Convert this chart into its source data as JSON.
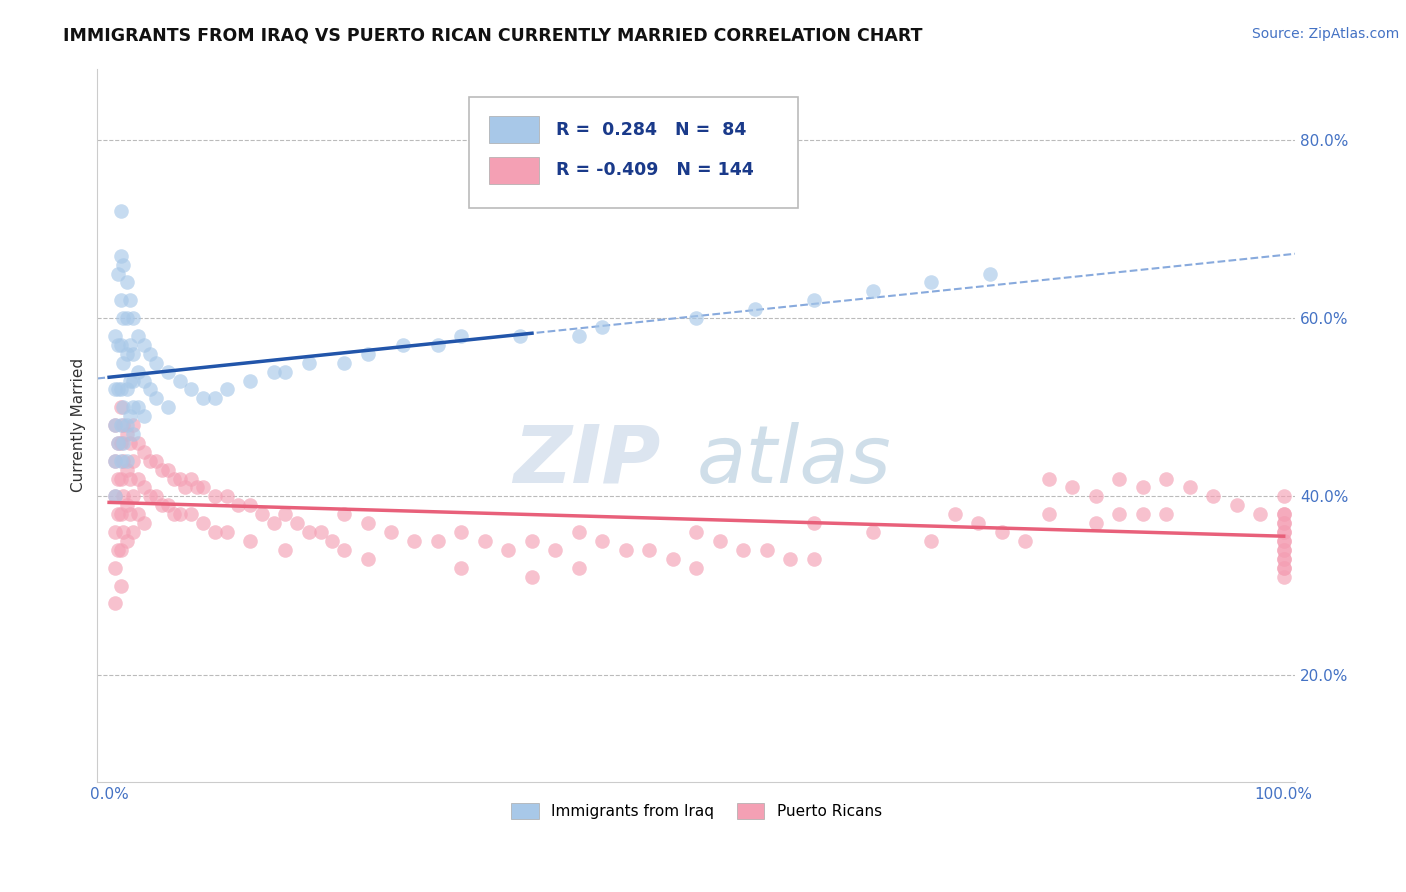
{
  "title": "IMMIGRANTS FROM IRAQ VS PUERTO RICAN CURRENTLY MARRIED CORRELATION CHART",
  "source_text": "Source: ZipAtlas.com",
  "ylabel": "Currently Married",
  "xlim": [
    -0.01,
    1.01
  ],
  "ylim": [
    0.08,
    0.88
  ],
  "yticks": [
    0.2,
    0.4,
    0.6,
    0.8
  ],
  "ytick_labels": [
    "20.0%",
    "40.0%",
    "60.0%",
    "80.0%"
  ],
  "xticks": [
    0.0,
    1.0
  ],
  "xtick_labels": [
    "0.0%",
    "100.0%"
  ],
  "legend_R_blue": "0.284",
  "legend_N_blue": "84",
  "legend_R_pink": "-0.409",
  "legend_N_pink": "144",
  "blue_color": "#A8C8E8",
  "pink_color": "#F4A0B4",
  "blue_line_color": "#2255AA",
  "pink_line_color": "#E8607A",
  "dashed_line_color": "#88AADD",
  "watermark_ZI": "ZIP",
  "watermark_atlas": "atlas",
  "watermark_color_zi": "#C0D0E4",
  "watermark_color_atlas": "#A8C4D8",
  "title_fontsize": 12.5,
  "label_fontsize": 11,
  "tick_fontsize": 11,
  "source_fontsize": 10,
  "blue_scatter_x": [
    0.005,
    0.005,
    0.005,
    0.005,
    0.005,
    0.008,
    0.008,
    0.008,
    0.008,
    0.01,
    0.01,
    0.01,
    0.01,
    0.01,
    0.01,
    0.01,
    0.012,
    0.012,
    0.012,
    0.012,
    0.012,
    0.015,
    0.015,
    0.015,
    0.015,
    0.015,
    0.015,
    0.018,
    0.018,
    0.018,
    0.018,
    0.02,
    0.02,
    0.02,
    0.02,
    0.02,
    0.025,
    0.025,
    0.025,
    0.03,
    0.03,
    0.03,
    0.035,
    0.035,
    0.04,
    0.04,
    0.05,
    0.05,
    0.06,
    0.07,
    0.08,
    0.09,
    0.1,
    0.12,
    0.14,
    0.15,
    0.17,
    0.2,
    0.22,
    0.25,
    0.28,
    0.3,
    0.35,
    0.4,
    0.42,
    0.5,
    0.55,
    0.6,
    0.65,
    0.7,
    0.75
  ],
  "blue_scatter_y": [
    0.58,
    0.52,
    0.48,
    0.44,
    0.4,
    0.65,
    0.57,
    0.52,
    0.46,
    0.72,
    0.67,
    0.62,
    0.57,
    0.52,
    0.48,
    0.44,
    0.66,
    0.6,
    0.55,
    0.5,
    0.46,
    0.64,
    0.6,
    0.56,
    0.52,
    0.48,
    0.44,
    0.62,
    0.57,
    0.53,
    0.49,
    0.6,
    0.56,
    0.53,
    0.5,
    0.47,
    0.58,
    0.54,
    0.5,
    0.57,
    0.53,
    0.49,
    0.56,
    0.52,
    0.55,
    0.51,
    0.54,
    0.5,
    0.53,
    0.52,
    0.51,
    0.51,
    0.52,
    0.53,
    0.54,
    0.54,
    0.55,
    0.55,
    0.56,
    0.57,
    0.57,
    0.58,
    0.58,
    0.58,
    0.59,
    0.6,
    0.61,
    0.62,
    0.63,
    0.64,
    0.65
  ],
  "pink_scatter_x": [
    0.005,
    0.005,
    0.005,
    0.005,
    0.005,
    0.005,
    0.008,
    0.008,
    0.008,
    0.008,
    0.01,
    0.01,
    0.01,
    0.01,
    0.01,
    0.01,
    0.012,
    0.012,
    0.012,
    0.012,
    0.015,
    0.015,
    0.015,
    0.015,
    0.018,
    0.018,
    0.018,
    0.02,
    0.02,
    0.02,
    0.02,
    0.025,
    0.025,
    0.025,
    0.03,
    0.03,
    0.03,
    0.035,
    0.035,
    0.04,
    0.04,
    0.045,
    0.045,
    0.05,
    0.05,
    0.055,
    0.055,
    0.06,
    0.06,
    0.065,
    0.07,
    0.07,
    0.075,
    0.08,
    0.08,
    0.09,
    0.09,
    0.1,
    0.1,
    0.11,
    0.12,
    0.12,
    0.13,
    0.14,
    0.15,
    0.15,
    0.16,
    0.17,
    0.18,
    0.19,
    0.2,
    0.2,
    0.22,
    0.22,
    0.24,
    0.26,
    0.28,
    0.3,
    0.3,
    0.32,
    0.34,
    0.36,
    0.36,
    0.38,
    0.4,
    0.4,
    0.42,
    0.44,
    0.46,
    0.48,
    0.5,
    0.5,
    0.52,
    0.54,
    0.56,
    0.58,
    0.6,
    0.6,
    0.65,
    0.7,
    0.72,
    0.74,
    0.76,
    0.78,
    0.8,
    0.8,
    0.82,
    0.84,
    0.84,
    0.86,
    0.86,
    0.88,
    0.88,
    0.9,
    0.9,
    0.92,
    0.94,
    0.96,
    0.98,
    1.0,
    1.0,
    1.0,
    1.0,
    1.0,
    1.0,
    1.0,
    1.0,
    1.0,
    1.0,
    1.0,
    1.0,
    1.0,
    1.0,
    1.0,
    1.0
  ],
  "pink_scatter_y": [
    0.48,
    0.44,
    0.4,
    0.36,
    0.32,
    0.28,
    0.46,
    0.42,
    0.38,
    0.34,
    0.5,
    0.46,
    0.42,
    0.38,
    0.34,
    0.3,
    0.48,
    0.44,
    0.4,
    0.36,
    0.47,
    0.43,
    0.39,
    0.35,
    0.46,
    0.42,
    0.38,
    0.48,
    0.44,
    0.4,
    0.36,
    0.46,
    0.42,
    0.38,
    0.45,
    0.41,
    0.37,
    0.44,
    0.4,
    0.44,
    0.4,
    0.43,
    0.39,
    0.43,
    0.39,
    0.42,
    0.38,
    0.42,
    0.38,
    0.41,
    0.42,
    0.38,
    0.41,
    0.41,
    0.37,
    0.4,
    0.36,
    0.4,
    0.36,
    0.39,
    0.39,
    0.35,
    0.38,
    0.37,
    0.38,
    0.34,
    0.37,
    0.36,
    0.36,
    0.35,
    0.38,
    0.34,
    0.37,
    0.33,
    0.36,
    0.35,
    0.35,
    0.36,
    0.32,
    0.35,
    0.34,
    0.35,
    0.31,
    0.34,
    0.36,
    0.32,
    0.35,
    0.34,
    0.34,
    0.33,
    0.36,
    0.32,
    0.35,
    0.34,
    0.34,
    0.33,
    0.37,
    0.33,
    0.36,
    0.35,
    0.38,
    0.37,
    0.36,
    0.35,
    0.42,
    0.38,
    0.41,
    0.4,
    0.37,
    0.42,
    0.38,
    0.41,
    0.38,
    0.42,
    0.38,
    0.41,
    0.4,
    0.39,
    0.38,
    0.4,
    0.38,
    0.38,
    0.37,
    0.37,
    0.36,
    0.36,
    0.35,
    0.35,
    0.34,
    0.34,
    0.33,
    0.33,
    0.32,
    0.32,
    0.31
  ]
}
